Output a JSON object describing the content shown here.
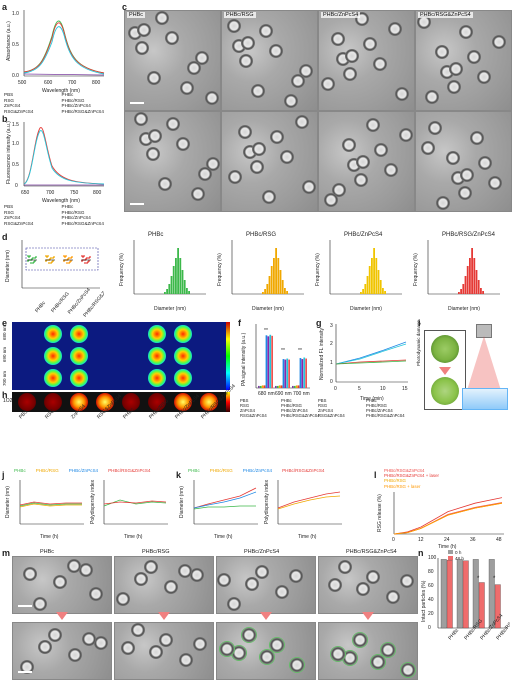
{
  "panels": {
    "a": {
      "letter": "a",
      "ylabel": "Absorbance (a.u.)",
      "xlabel": "Wavelength (nm)",
      "xticks": [
        "500",
        "600",
        "700",
        "800"
      ],
      "yticks": [
        "0.0",
        "0.5",
        "1.0"
      ],
      "legend": [
        "PBS",
        "PHBc",
        "RSG",
        "PHBc/RSG",
        "ZnPcS4",
        "PHBc/ZnPcS4",
        "RSG&ZnPcS4",
        "PHBc/RSG&ZnPcS4"
      ]
    },
    "b": {
      "letter": "b",
      "ylabel": "Fluorescence intensity (a.u.)",
      "xlabel": "Wavelength (nm)",
      "xticks": [
        "650",
        "700",
        "750",
        "800"
      ],
      "yticks": [
        "0",
        "0.5",
        "1.0",
        "1.5"
      ],
      "legend": [
        "PBS",
        "PHBc",
        "RSG",
        "PHBc/RSG",
        "ZnPcS4",
        "PHBc/ZnPcS4",
        "RSG&ZnPcS4",
        "PHBc/RSG&ZnPcS4"
      ]
    },
    "c": {
      "letter": "c",
      "tem_labels": [
        "PHBc",
        "PHBc/RSG",
        "PHBc/ZnPcS4",
        "PHBc/RSG&ZnPcS4"
      ]
    },
    "d": {
      "letter": "d",
      "ylabel": "Diameter (nm)",
      "yticks": [
        "0",
        "10",
        "20",
        "30",
        "40"
      ],
      "groups": [
        "PHBc",
        "PHBc/RSG",
        "PHBc/ZnPcS4",
        "PHBc/RSG&ZnPcS4"
      ],
      "hist_titles": [
        "PHBc",
        "PHBc/RSG",
        "PHBc/ZnPcS4",
        "PHBc/RSG/ZnPcS4"
      ],
      "hist_xlabel": "Diameter (nm)",
      "hist_ylabel": "Frequency (%)",
      "hist_xticks": [
        "10",
        "15",
        "20",
        "25",
        "30",
        "35",
        "40",
        "45",
        "50"
      ],
      "hist_yticks": [
        "0",
        "20",
        "40",
        "60",
        "80"
      ]
    },
    "e": {
      "letter": "e",
      "rows": [
        "680 nm",
        "690 nm",
        "700 nm"
      ]
    },
    "f": {
      "letter": "f",
      "ylabel": "PA signal intensity (a.u.)",
      "categories": [
        "680 nm",
        "690 nm",
        "700 nm"
      ],
      "yticks": [
        "0",
        "2",
        "4",
        "6",
        "8",
        "10",
        "12"
      ],
      "legend": [
        "PBS",
        "PHBc",
        "RSG",
        "PHBc/RSG",
        "ZnPcS4",
        "PHBc/ZnPcS4",
        "RSG&ZnPcS4",
        "PHBc/RSG&ZnPcS4"
      ],
      "sig": "**"
    },
    "g": {
      "letter": "g",
      "ylabel": "Normalized FL intensity",
      "xlabel": "Time (min)",
      "xticks": [
        "0",
        "5",
        "10",
        "15"
      ],
      "yticks": [
        "0",
        "1",
        "2",
        "3"
      ],
      "legend": [
        "PBS",
        "PHBc",
        "RSG",
        "PHBc/RSG",
        "ZnPcS4",
        "PHBc/ZnPcS4",
        "RSG&ZnPcS4",
        "PHBc/RSG&ZnPcS4"
      ]
    },
    "h": {
      "letter": "h",
      "row_label": "1O2",
      "cols": [
        "PBS",
        "RSG",
        "ZnPcS4",
        "RSG&ZnPcS4",
        "PHBc",
        "PHBc/RSG",
        "PHBc/ZnPcS4",
        "PHBc/RSG&ZnPcS4"
      ]
    },
    "i": {
      "letter": "i",
      "side_label": "Photodynamic damage"
    },
    "j": {
      "letter": "j",
      "legend": [
        "PHBc",
        "PHBc/RSG",
        "PHBc/ZnPcS4",
        "PHBc/RSG&ZnPcS4"
      ],
      "ylabel1": "Diameter (nm)",
      "ylabel2": "Polydispersity index",
      "xlabel": "Time (h)",
      "xticks": [
        "0",
        "12",
        "24",
        "36",
        "48"
      ]
    },
    "k": {
      "letter": "k",
      "legend": [
        "PHBc",
        "PHBc/RSG",
        "PHBc/ZnPcS4",
        "PHBc/RSG&ZnPcS4"
      ],
      "ylabel1": "Diameter (nm)",
      "ylabel2": "Polydispersity index",
      "xlabel": "Time (h)",
      "xticks": [
        "0",
        "12",
        "24",
        "36",
        "48"
      ]
    },
    "l": {
      "letter": "l",
      "legend": [
        "PHBc/RSG&ZnPcS4",
        "PHBc/RSG&ZnPcS4 + laser",
        "PHBc/RSG",
        "PHBc/RSG + laser"
      ],
      "ylabel": "RSG release (%)",
      "xlabel": "Time (h)",
      "xticks": [
        "0",
        "12",
        "24",
        "36",
        "48"
      ],
      "yticks": [
        "0",
        "20",
        "40",
        "60"
      ]
    },
    "m": {
      "letter": "m",
      "labels": [
        "PHBc",
        "PHBc/RSG",
        "PHBc/ZnPcS4",
        "PHBc/RSG&ZnPcS4"
      ]
    },
    "n": {
      "letter": "n",
      "legend": [
        "0 h",
        "48 h"
      ],
      "ylabel": "Intact particles (%)",
      "yticks": [
        "0",
        "20",
        "40",
        "60",
        "80",
        "100"
      ],
      "groups": [
        "PHBc",
        "PHBc/RSG",
        "PHBc/ZnPcS4",
        "PHBc/RSG&ZnPcS4"
      ],
      "sig": "*"
    }
  },
  "colors": {
    "PBS": "#7b3fa0",
    "PHBc": "#3cb84a",
    "RSG": "#f0a800",
    "PHBc_RSG": "#e53935",
    "ZnPcS4": "#1e88e5",
    "PHBc_ZnPcS4": "#8e24aa",
    "RSG_ZnPcS4": "#26c6da",
    "PHBc_RSG_ZnPcS4": "#ef5350"
  },
  "chart_data": [
    {
      "type": "line",
      "panel": "n",
      "title": "",
      "xlabel": "",
      "ylabel": "Intact particles (%)",
      "ylim": [
        0,
        100
      ],
      "categories": [
        "PHBc",
        "PHBc/RSG",
        "PHBc/ZnPcS4",
        "PHBc/RSG&ZnPcS4"
      ],
      "series": [
        {
          "name": "0 h",
          "values": [
            98,
            98,
            98,
            98
          ]
        },
        {
          "name": "48 h",
          "values": [
            97,
            96,
            65,
            62
          ]
        }
      ]
    },
    {
      "type": "bar",
      "panel": "f",
      "ylabel": "PA signal intensity (a.u.)",
      "ylim": [
        0,
        12
      ],
      "categories": [
        "680 nm",
        "690 nm",
        "700 nm"
      ],
      "series": [
        {
          "name": "PBS",
          "values": [
            0.4,
            0.4,
            0.4
          ]
        },
        {
          "name": "PHBc",
          "values": [
            0.4,
            0.4,
            0.4
          ]
        },
        {
          "name": "RSG",
          "values": [
            0.5,
            0.5,
            0.5
          ]
        },
        {
          "name": "PHBc/RSG",
          "values": [
            0.5,
            0.5,
            0.5
          ]
        },
        {
          "name": "ZnPcS4",
          "values": [
            10.2,
            5.6,
            5.8
          ]
        },
        {
          "name": "PHBc/ZnPcS4",
          "values": [
            10.0,
            5.5,
            5.6
          ]
        },
        {
          "name": "RSG&ZnPcS4",
          "values": [
            10.3,
            5.7,
            5.9
          ]
        },
        {
          "name": "PHBc/RSG&ZnPcS4",
          "values": [
            10.1,
            5.5,
            5.7
          ]
        }
      ]
    },
    {
      "type": "line",
      "panel": "l",
      "ylabel": "RSG release (%)",
      "xlabel": "Time (h)",
      "ylim": [
        0,
        60
      ],
      "x": [
        0,
        6,
        12,
        24,
        36,
        48
      ],
      "series": [
        {
          "name": "PHBc/RSG&ZnPcS4",
          "values": [
            0,
            2,
            8,
            28,
            38,
            45
          ]
        },
        {
          "name": "PHBc/RSG&ZnPcS4 + laser",
          "values": [
            0,
            3,
            10,
            32,
            44,
            52
          ]
        },
        {
          "name": "PHBc/RSG",
          "values": [
            0,
            2,
            8,
            27,
            37,
            44
          ]
        },
        {
          "name": "PHBc/RSG + laser",
          "values": [
            0,
            2,
            8,
            27,
            37,
            44
          ]
        }
      ]
    }
  ]
}
